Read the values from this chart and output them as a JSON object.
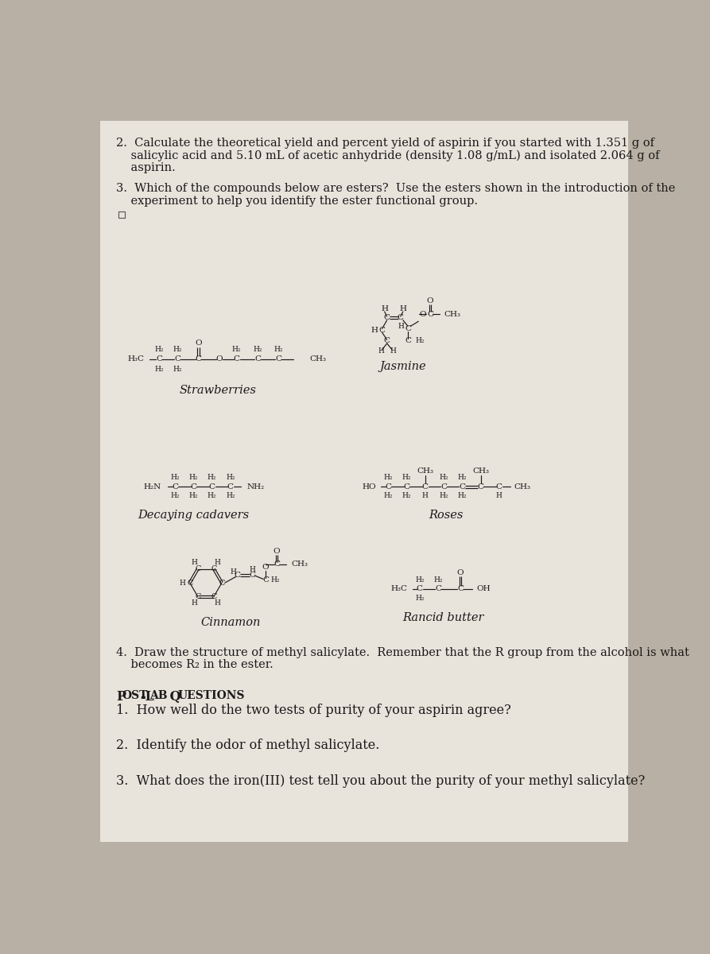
{
  "bg_color": "#b8b0a4",
  "page_bg": "#e8e3db",
  "text_color": "#1a1a1a",
  "fs_body": 10.5,
  "fs_struct": 7.5,
  "fs_struct_sub": 6.5,
  "fs_label": 11.0,
  "q2_line1": "2.  Calculate the theoretical yield and percent yield of aspirin if you started with 1.351 g of",
  "q2_line2": "    salicylic acid and 5.10 mL of acetic anhydride (density 1.08 g/mL) and isolated 2.064 g of",
  "q2_line3": "    aspirin.",
  "q3_line1": "3.  Which of the compounds below are esters?  Use the esters shown in the introduction of the",
  "q3_line2": "    experiment to help you identify the ester functional group.",
  "q4_line1": "4.  Draw the structure of methyl salicylate.  Remember that the R group from the alcohol is what",
  "q4_line2": "    becomes R₂ in the ester.",
  "postlab_header": "Post-Lab Questions",
  "postlab_q1": "1.  How well do the two tests of purity of your aspirin agree?",
  "postlab_q2": "2.  Identify the odor of methyl salicylate.",
  "postlab_q3": "3.  What does the iron(III) test tell you about the purity of your methyl salicylate?",
  "strawberries_label": "Strawberries",
  "jasmine_label": "Jasmine",
  "cadavers_label": "Decaying cadavers",
  "roses_label": "Roses",
  "cinnamon_label": "Cinnamon",
  "rancid_label": "Rancid butter",
  "postlab_fs": 11.5,
  "postlab_header_fs": 11.5
}
